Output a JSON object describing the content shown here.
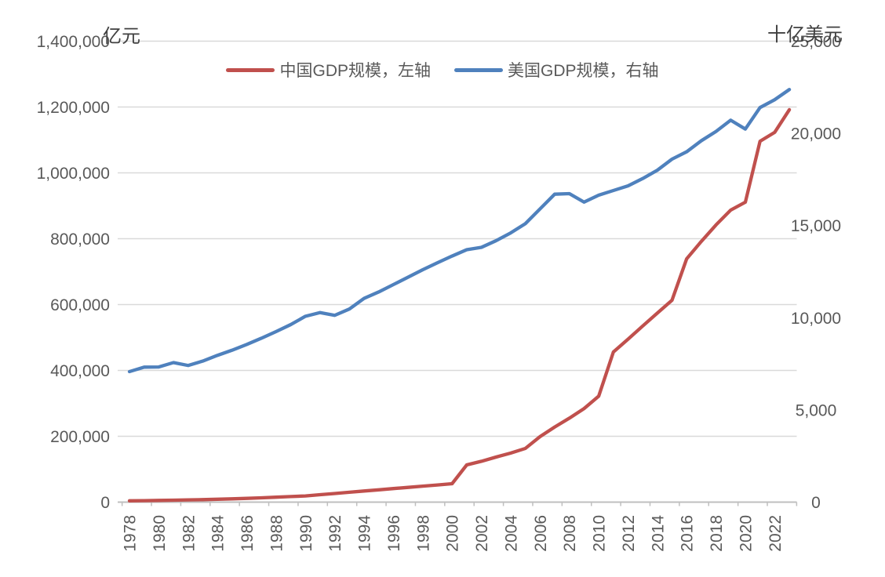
{
  "chart_data": {
    "type": "line",
    "title": "",
    "left_axis": {
      "title": "亿元",
      "min": 0,
      "max": 1400000,
      "step": 200000,
      "tick_labels": [
        "0",
        "200,000",
        "400,000",
        "600,000",
        "800,000",
        "1,000,000",
        "1,200,000",
        "1,400,000"
      ]
    },
    "right_axis": {
      "title": "十亿美元",
      "min": 0,
      "max": 25000,
      "step": 5000,
      "tick_labels": [
        "0",
        "5,000",
        "10,000",
        "15,000",
        "20,000",
        "25,000"
      ]
    },
    "x": [
      1978,
      1979,
      1980,
      1981,
      1982,
      1983,
      1984,
      1985,
      1986,
      1987,
      1988,
      1989,
      1990,
      1991,
      1992,
      1993,
      1994,
      1995,
      1996,
      1997,
      1998,
      1999,
      2000,
      2001,
      2002,
      2003,
      2004,
      2005,
      2006,
      2007,
      2008,
      2009,
      2010,
      2011,
      2012,
      2013,
      2014,
      2015,
      2016,
      2017,
      2018,
      2019,
      2020,
      2021,
      2022,
      2023
    ],
    "x_tick_labels": [
      "1978",
      "1980",
      "1982",
      "1984",
      "1986",
      "1988",
      "1990",
      "1992",
      "1994",
      "1996",
      "1998",
      "2000",
      "2002",
      "2004",
      "2006",
      "2008",
      "2010",
      "2012",
      "2014",
      "2016",
      "2018",
      "2020",
      "2022"
    ],
    "grid": true,
    "legend_position": "top",
    "series": [
      {
        "name": "中国GDP规模，左轴",
        "axis": "left",
        "color": "#C0504D",
        "values": [
          4000,
          4600,
          5300,
          6000,
          6800,
          7700,
          8800,
          10000,
          11400,
          13000,
          14900,
          16800,
          18900,
          22600,
          26300,
          30000,
          33700,
          37400,
          41100,
          44800,
          48500,
          52200,
          55900,
          113000,
          124000,
          137000,
          149000,
          163000,
          199000,
          228000,
          255000,
          284000,
          322000,
          456000,
          495000,
          535000,
          574000,
          613000,
          739000,
          792000,
          842000,
          887000,
          911000,
          1096000,
          1123000,
          1192000
        ]
      },
      {
        "name": "美国GDP规模，右轴",
        "axis": "right",
        "color": "#4F81BD",
        "values": [
          7080,
          7320,
          7330,
          7570,
          7410,
          7650,
          7960,
          8240,
          8550,
          8890,
          9250,
          9630,
          10080,
          10280,
          10130,
          10475,
          11050,
          11400,
          11800,
          12200,
          12600,
          12980,
          13345,
          13690,
          13820,
          14180,
          14600,
          15100,
          15900,
          16700,
          16730,
          16270,
          16650,
          16900,
          17150,
          17550,
          18000,
          18600,
          19000,
          19600,
          20100,
          20715,
          20235,
          21400,
          21825,
          22375
        ]
      }
    ],
    "colors": {
      "gridline": "#D9D9D9",
      "axis_line": "#BFBFBF",
      "text": "#595959"
    }
  }
}
